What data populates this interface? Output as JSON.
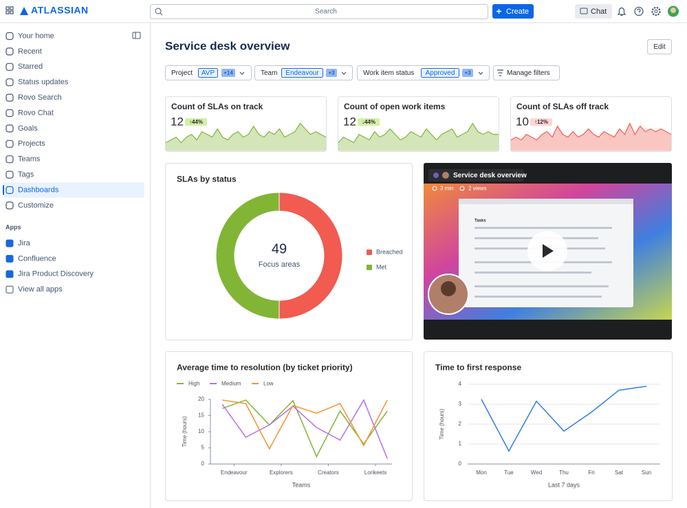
{
  "topbar": {
    "logo": "ATLASSIAN",
    "search": "Search",
    "create": "Create",
    "chat": "Chat"
  },
  "sidebar": {
    "items": [
      "Your home",
      "Recent",
      "Starred",
      "Status updates",
      "Rovo Search",
      "Rovo Chat",
      "Goals",
      "Projects",
      "Teams",
      "Tags",
      "Dashboards",
      "Customize"
    ],
    "selected": "Dashboards",
    "apps_heading": "Apps",
    "apps": [
      "Jira",
      "Confluence",
      "Jira Product Discovery",
      "View all apps"
    ]
  },
  "page": {
    "title": "Service desk overview",
    "edit": "Edit",
    "filters": [
      {
        "label": "Project",
        "value": "AVP",
        "more": "+14"
      },
      {
        "label": "Team",
        "value": "Endeavour",
        "more": "+3"
      },
      {
        "label": "Work item status",
        "value": "Approved",
        "more": "+3"
      }
    ],
    "manage_filters": "Manage filters"
  },
  "kpis": [
    {
      "title": "Count of SLAs on track",
      "value": 12,
      "change": "↑44%",
      "color": "#82b536",
      "badge_color": "#d3f1a7",
      "sparkline": [
        3,
        4,
        5,
        3,
        5,
        6,
        4,
        7,
        6,
        5,
        8,
        5,
        4,
        6,
        7,
        5,
        6,
        9,
        6,
        5,
        7,
        6,
        8,
        5,
        6,
        7,
        10,
        8,
        6,
        7,
        6,
        5
      ]
    },
    {
      "title": "Count of open work items",
      "value": 12,
      "change": "↓44%",
      "color": "#82b536",
      "badge_color": "#d3f1a7",
      "sparkline": [
        3,
        5,
        4,
        3,
        6,
        5,
        4,
        7,
        5,
        6,
        8,
        6,
        4,
        5,
        7,
        6,
        5,
        8,
        6,
        4,
        6,
        7,
        8,
        5,
        6,
        7,
        10,
        7,
        6,
        7,
        6,
        6
      ]
    },
    {
      "title": "Count of SLAs off track",
      "value": 10,
      "change": "↑12%",
      "color": "#f15b50",
      "badge_color": "#ffd5d2",
      "sparkline": [
        4,
        5,
        4,
        6,
        5,
        4,
        6,
        7,
        5,
        9,
        6,
        5,
        7,
        5,
        6,
        8,
        6,
        5,
        7,
        6,
        5,
        8,
        6,
        10,
        6,
        9,
        7,
        8,
        7,
        8,
        7,
        6
      ]
    }
  ],
  "video": {
    "title": "Service desk overview",
    "duration": "3 min",
    "views": "2 views",
    "inner_title": "Tasks"
  },
  "chart_data": [
    {
      "type": "donut",
      "title": "SLAs by status",
      "center_value": 49,
      "center_label": "Focus areas",
      "categories": [
        "Breached",
        "Met"
      ],
      "values": [
        50,
        50
      ],
      "colors": [
        "#f15b50",
        "#82b536"
      ],
      "legend": "right"
    },
    {
      "type": "line",
      "title": "Average time to resolution (by ticket priority)",
      "x": [
        0,
        1,
        2,
        3,
        4,
        5,
        6,
        7
      ],
      "xlim": [
        -0.5,
        7.2
      ],
      "xticks": [
        {
          "value": 0.5,
          "label": "Endeavour"
        },
        {
          "value": 2.5,
          "label": "Explorers"
        },
        {
          "value": 4.5,
          "label": "Creators"
        },
        {
          "value": 6.5,
          "label": "Lorikeets"
        }
      ],
      "xlabel": "Teams",
      "ylabel": "Time (hours)",
      "ylim": [
        0,
        20
      ],
      "yticks": [
        0,
        5,
        10,
        15,
        20
      ],
      "grid": false,
      "legend": "top",
      "series": [
        {
          "name": "High",
          "color": "#82b536",
          "values": [
            17.2,
            19.8,
            12.1,
            19.6,
            2.3,
            16.4,
            6.2,
            16.4
          ]
        },
        {
          "name": "Medium",
          "color": "#b86ee6",
          "values": [
            18.5,
            8.3,
            12.1,
            17.9,
            11.3,
            7.4,
            19.8,
            1.7
          ]
        },
        {
          "name": "Low",
          "color": "#f5922f",
          "values": [
            19.8,
            18.7,
            4.7,
            18.1,
            15.7,
            18.7,
            5.7,
            19.8
          ]
        }
      ]
    },
    {
      "type": "line",
      "title": "Time to first response",
      "categories": [
        "Mon",
        "Tue",
        "Wed",
        "Thu",
        "Fri",
        "Sat",
        "Sun"
      ],
      "xlabel": "Last 7 days",
      "ylabel": "Time (hours)",
      "ylim": [
        0,
        4
      ],
      "yticks": [
        0,
        1,
        2,
        3,
        4
      ],
      "grid": true,
      "series": [
        {
          "name": null,
          "color": "#2f7ee6",
          "values": [
            3.25,
            0.65,
            3.15,
            1.65,
            2.6,
            3.7,
            3.9
          ]
        }
      ]
    }
  ]
}
